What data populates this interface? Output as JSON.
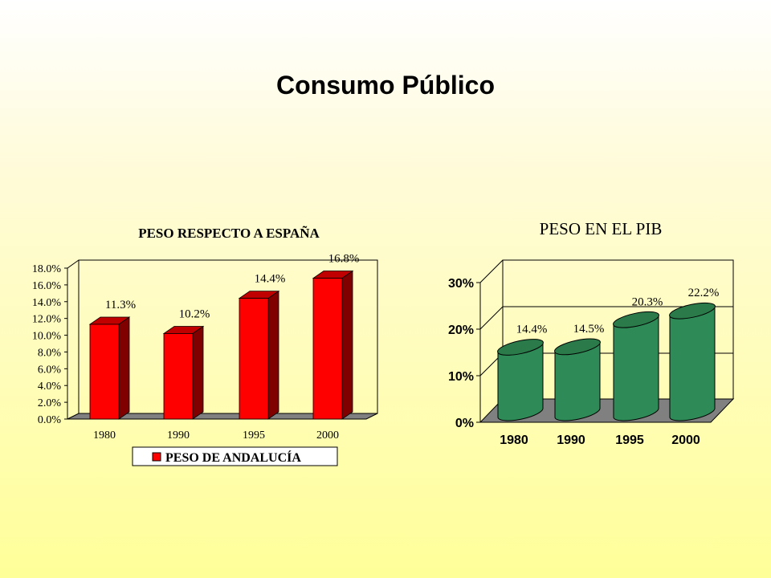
{
  "slide": {
    "title": "Consumo Público"
  },
  "colors": {
    "bar_red": "#ff0000",
    "bar_red_side": "#800000",
    "bar_red_top": "#c00000",
    "cyl_green": "#2e8b57",
    "cyl_green_top": "#2a7a4a",
    "floor": "#808080"
  },
  "chart_data": [
    {
      "type": "bar",
      "title": "PESO RESPECTO A ESPAÑA",
      "categories": [
        "1980",
        "1990",
        "1995",
        "2000"
      ],
      "series": [
        {
          "name": "PESO DE ANDALUCÍA",
          "values": [
            11.3,
            10.2,
            14.4,
            16.8
          ]
        }
      ],
      "data_labels": [
        "11.3%",
        "10.2%",
        "14.4%",
        "16.8%"
      ],
      "y_ticks": [
        "0.0%",
        "2.0%",
        "4.0%",
        "6.0%",
        "8.0%",
        "10.0%",
        "12.0%",
        "14.0%",
        "16.0%",
        "18.0%"
      ],
      "ylim": [
        0,
        18
      ],
      "legend": "bottom",
      "grid": false
    },
    {
      "type": "bar",
      "style": "3d-cylinder",
      "title": "PESO EN EL PIB",
      "categories": [
        "1980",
        "1990",
        "1995",
        "2000"
      ],
      "values": [
        14.4,
        14.5,
        20.3,
        22.2
      ],
      "data_labels": [
        "14.4%",
        "14.5%",
        "20.3%",
        "22.2%"
      ],
      "y_ticks": [
        "0%",
        "10%",
        "20%",
        "30%"
      ],
      "ylim": [
        0,
        30
      ],
      "grid": true
    }
  ]
}
